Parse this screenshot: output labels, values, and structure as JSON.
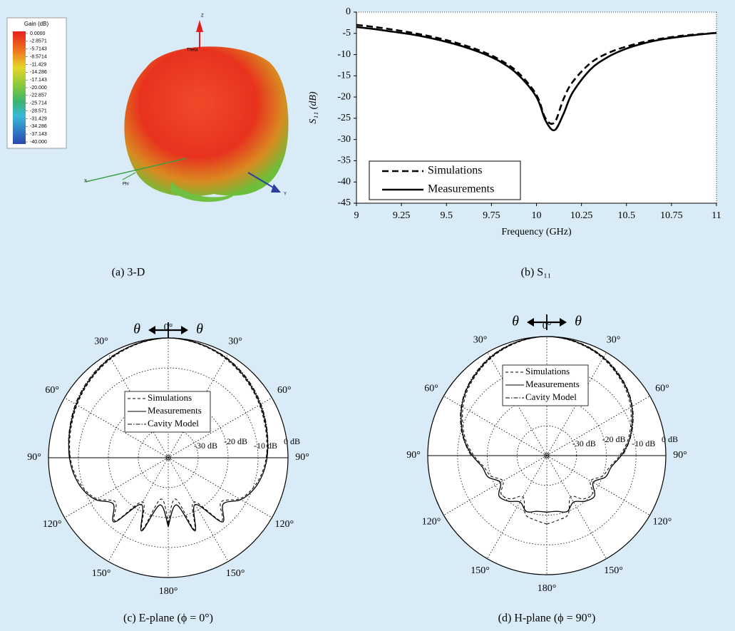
{
  "chart_data": [
    {
      "type": "pattern3d",
      "caption": "(a) 3-D",
      "colorbar": {
        "title": "Gain (dB)",
        "ticks": [
          {
            "value": 0,
            "label": "0.0000"
          },
          -2.8571,
          -5.7143,
          -8.5714,
          -11.429,
          -14.286,
          -17.143,
          {
            "value": -20,
            "label": "-20.000"
          },
          -22.857,
          -25.714,
          -28.571,
          -31.429,
          -34.286,
          -37.143,
          {
            "value": -40,
            "label": "-40.000"
          }
        ]
      },
      "axis_labels": [
        "Z",
        "Theta",
        "Phi",
        "Y",
        "X"
      ]
    },
    {
      "type": "line",
      "caption": "(b) S₁₁",
      "xlabel": "Frequency (GHz)",
      "ylabel": "S₁₁ (dB)",
      "x": [
        9,
        9.1,
        9.2,
        9.3,
        9.4,
        9.5,
        9.6,
        9.7,
        9.8,
        9.9,
        10,
        10.05,
        10.1,
        10.15,
        10.2,
        10.3,
        10.4,
        10.5,
        10.6,
        10.7,
        10.8,
        10.9,
        11
      ],
      "series": [
        {
          "name": "Simulations",
          "color": "#000000",
          "line_style": "dashed",
          "values": [
            -3,
            -3.5,
            -4.1,
            -4.8,
            -5.6,
            -6.6,
            -7.8,
            -9.3,
            -11.3,
            -14.3,
            -19.5,
            -25,
            -26,
            -20.5,
            -16.5,
            -12,
            -9.6,
            -8.1,
            -7,
            -6.2,
            -5.6,
            -5.2,
            -4.9
          ]
        },
        {
          "name": "Measurements",
          "color": "#000000",
          "line_style": "solid",
          "values": [
            -3.5,
            -4,
            -4.6,
            -5.2,
            -6,
            -7,
            -8.2,
            -9.7,
            -11.7,
            -14.8,
            -20,
            -25.5,
            -27.8,
            -24,
            -19,
            -13.5,
            -10.5,
            -8.6,
            -7.3,
            -6.4,
            -5.8,
            -5.3,
            -4.9
          ]
        }
      ],
      "xlim": [
        9,
        11
      ],
      "xticks": [
        9,
        9.25,
        9.5,
        9.75,
        10,
        10.25,
        10.5,
        10.75,
        11
      ],
      "ylim": [
        -45,
        0
      ],
      "yticks": [
        0,
        -5,
        -10,
        -15,
        -20,
        -25,
        -30,
        -35,
        -40,
        -45
      ],
      "grid": false,
      "legend": "lower left"
    },
    {
      "type": "polar",
      "caption": "(c) E-plane (ϕ = 0°)",
      "direction_label": "θ",
      "theta": [
        -180,
        -170,
        -160,
        -150,
        -140,
        -130,
        -120,
        -110,
        -100,
        -90,
        -80,
        -70,
        -60,
        -50,
        -40,
        -30,
        -20,
        -10,
        0,
        10,
        20,
        30,
        40,
        50,
        60,
        70,
        80,
        90,
        100,
        110,
        120,
        130,
        140,
        150,
        160,
        170,
        180
      ],
      "series": [
        {
          "name": "Simulations",
          "color": "#000000",
          "line_style": "dashed",
          "values": [
            -18,
            -26,
            -14.5,
            -23,
            -12.5,
            -17,
            -12.5,
            -10,
            -8.4,
            -7.3,
            -6.6,
            -5.8,
            -4.8,
            -3.8,
            -2.8,
            -1.8,
            -1,
            -0.4,
            0,
            -0.4,
            -1,
            -1.8,
            -2.8,
            -3.8,
            -4.8,
            -5.8,
            -6.6,
            -7.3,
            -8.4,
            -10,
            -12.5,
            -17,
            -12.5,
            -23,
            -14.5,
            -26,
            -18
          ]
        },
        {
          "name": "Measurements",
          "color": "#000000",
          "line_style": "solid",
          "values": [
            -17,
            -24,
            -14,
            -22,
            -12,
            -16,
            -12,
            -9.5,
            -8,
            -7,
            -6.3,
            -5.5,
            -4.5,
            -3.5,
            -2.5,
            -1.5,
            -0.8,
            -0.3,
            0,
            -0.3,
            -0.8,
            -1.5,
            -2.5,
            -3.5,
            -4.5,
            -5.5,
            -6.3,
            -7,
            -8,
            -9.5,
            -12,
            -16,
            -12,
            -22,
            -14,
            -24,
            -17
          ]
        },
        {
          "name": "Cavity Model",
          "color": "#000000",
          "line_style": "dashdot",
          "values": [
            null,
            null,
            null,
            null,
            null,
            null,
            null,
            null,
            null,
            -7.2,
            -6.2,
            -5.3,
            -4.2,
            -3.2,
            -2.2,
            -1.3,
            -0.7,
            -0.2,
            0,
            -0.2,
            -0.7,
            -1.3,
            -2.2,
            -3.2,
            -4.2,
            -5.3,
            -6.2,
            -7.2,
            null,
            null,
            null,
            null,
            null,
            null,
            null,
            null,
            null
          ]
        }
      ],
      "rlim": [
        -40,
        0
      ],
      "rticks": [
        {
          "value": -30,
          "label": "-30 dB"
        },
        {
          "value": -20,
          "label": "-20 dB"
        },
        {
          "value": -10,
          "label": "-10 dB"
        },
        {
          "value": 0,
          "label": "0 dB"
        }
      ],
      "angle_ticks": [
        {
          "value": 0,
          "label": "0°"
        },
        {
          "value": 30,
          "label": "30°"
        },
        {
          "value": 60,
          "label": "60°"
        },
        {
          "value": 90,
          "label": "90°"
        },
        {
          "value": 120,
          "label": "120°"
        },
        {
          "value": 150,
          "label": "150°"
        },
        {
          "value": 180,
          "label": "180°"
        }
      ],
      "legend": "upper center"
    },
    {
      "type": "polar",
      "caption": "(d) H-plane (ϕ = 90°)",
      "direction_label": "θ",
      "theta": [
        -180,
        -170,
        -160,
        -150,
        -140,
        -130,
        -120,
        -110,
        -100,
        -90,
        -80,
        -70,
        -60,
        -50,
        -40,
        -30,
        -20,
        -10,
        0,
        10,
        20,
        30,
        40,
        50,
        60,
        70,
        80,
        90,
        100,
        110,
        120,
        130,
        140,
        150,
        160,
        170,
        180
      ],
      "series": [
        {
          "name": "Simulations",
          "color": "#000000",
          "line_style": "dashed",
          "values": [
            -17,
            -18,
            -19,
            -24,
            -21,
            -20,
            -23,
            -20,
            -18.5,
            -15.5,
            -12.5,
            -10,
            -7.5,
            -5.4,
            -3.8,
            -2.3,
            -1.2,
            -0.4,
            0,
            -0.4,
            -1.2,
            -2.3,
            -3.8,
            -5.4,
            -7.5,
            -10,
            -12.5,
            -15.5,
            -18.5,
            -20,
            -23,
            -20,
            -21,
            -24,
            -19,
            -18,
            -17
          ]
        },
        {
          "name": "Measurements",
          "color": "#000000",
          "line_style": "solid",
          "values": [
            -21,
            -21,
            -20,
            -22,
            -20,
            -19,
            -22,
            -19,
            -18,
            -15,
            -12,
            -9.5,
            -7,
            -5,
            -3.5,
            -2,
            -1,
            -0.3,
            0,
            -0.3,
            -1,
            -2,
            -3.5,
            -5,
            -7,
            -9.5,
            -12,
            -15,
            -18,
            -19,
            -22,
            -19,
            -20,
            -22,
            -20,
            -21,
            -21
          ]
        },
        {
          "name": "Cavity Model",
          "color": "#000000",
          "line_style": "dashdot",
          "values": [
            null,
            null,
            null,
            null,
            null,
            null,
            null,
            null,
            null,
            -14.5,
            -11.8,
            -9.2,
            -6.8,
            -4.8,
            -3.2,
            -1.8,
            -0.8,
            -0.2,
            0,
            -0.2,
            -0.8,
            -1.8,
            -3.2,
            -4.8,
            -6.8,
            -9.2,
            -11.8,
            -14.5,
            null,
            null,
            null,
            null,
            null,
            null,
            null,
            null,
            null
          ]
        }
      ],
      "rlim": [
        -40,
        0
      ],
      "rticks": [
        {
          "value": -30,
          "label": "-30 dB"
        },
        {
          "value": -20,
          "label": "-20 dB"
        },
        {
          "value": -10,
          "label": "-10 dB"
        },
        {
          "value": 0,
          "label": "0 dB"
        }
      ],
      "angle_ticks": [
        {
          "value": 0,
          "label": "0°"
        },
        {
          "value": 30,
          "label": "30°"
        },
        {
          "value": 60,
          "label": "60°"
        },
        {
          "value": 90,
          "label": "90°"
        },
        {
          "value": 120,
          "label": "120°"
        },
        {
          "value": 150,
          "label": "150°"
        },
        {
          "value": 180,
          "label": "180°"
        }
      ],
      "legend": "upper center"
    }
  ]
}
